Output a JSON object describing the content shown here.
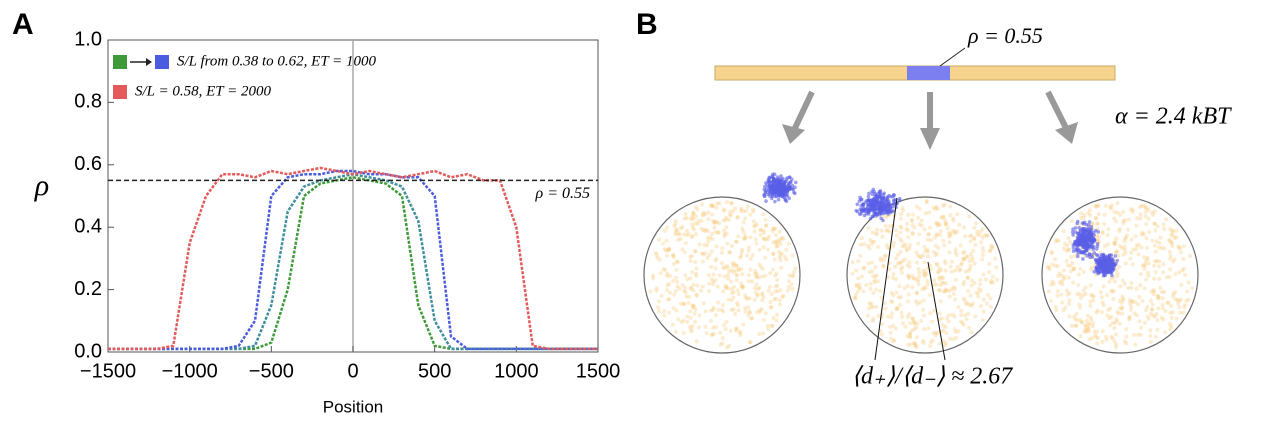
{
  "chart_data": {
    "type": "line",
    "panel_label": "A",
    "xlabel": "Position",
    "ylabel": "ρ",
    "x": [
      -1500,
      -1400,
      -1300,
      -1200,
      -1100,
      -1000,
      -900,
      -800,
      -700,
      -600,
      -500,
      -400,
      -300,
      -200,
      -100,
      0,
      100,
      200,
      300,
      400,
      500,
      600,
      700,
      800,
      900,
      1000,
      1100,
      1200,
      1300,
      1400,
      1500
    ],
    "series": [
      {
        "name": "S/L from 0.38 to 0.62,  ET = 1000",
        "color": "#3f9a3a",
        "values": [
          0.01,
          0.01,
          0.01,
          0.01,
          0.01,
          0.01,
          0.01,
          0.01,
          0.01,
          0.01,
          0.03,
          0.2,
          0.5,
          0.54,
          0.55,
          0.56,
          0.55,
          0.54,
          0.5,
          0.15,
          0.02,
          0.01,
          0.01,
          0.01,
          0.01,
          0.01,
          0.01,
          0.01,
          0.01,
          0.01,
          0.01
        ]
      },
      {
        "color": "#3f8f9a",
        "values": [
          0.01,
          0.01,
          0.01,
          0.01,
          0.01,
          0.01,
          0.01,
          0.01,
          0.01,
          0.02,
          0.15,
          0.45,
          0.53,
          0.55,
          0.56,
          0.57,
          0.56,
          0.55,
          0.53,
          0.42,
          0.1,
          0.01,
          0.01,
          0.01,
          0.01,
          0.01,
          0.01,
          0.01,
          0.01,
          0.01,
          0.01
        ]
      },
      {
        "color": "#4b5ce0",
        "values": [
          0.01,
          0.01,
          0.01,
          0.01,
          0.01,
          0.01,
          0.01,
          0.01,
          0.02,
          0.1,
          0.5,
          0.56,
          0.57,
          0.57,
          0.58,
          0.58,
          0.57,
          0.57,
          0.56,
          0.56,
          0.5,
          0.05,
          0.01,
          0.01,
          0.01,
          0.01,
          0.01,
          0.01,
          0.01,
          0.01,
          0.01
        ]
      },
      {
        "name": "S/L = 0.58,  ET = 2000",
        "color": "#e45a5a",
        "values": [
          0.01,
          0.01,
          0.01,
          0.01,
          0.02,
          0.35,
          0.5,
          0.57,
          0.57,
          0.56,
          0.58,
          0.57,
          0.58,
          0.59,
          0.58,
          0.57,
          0.58,
          0.57,
          0.56,
          0.57,
          0.58,
          0.56,
          0.57,
          0.55,
          0.55,
          0.4,
          0.02,
          0.01,
          0.01,
          0.01,
          0.01
        ]
      }
    ],
    "annotations": [
      {
        "text": "ρ = 0.55",
        "value": 0.55
      }
    ],
    "xlim": [
      -1500,
      1500
    ],
    "xticks": [
      {
        "value": -1500,
        "label": "−1500"
      },
      {
        "value": -1000,
        "label": "−1000"
      },
      {
        "value": -500,
        "label": "−500"
      },
      0,
      500,
      1000,
      1500
    ],
    "ylim": [
      0,
      1
    ],
    "yticks": [
      {
        "value": 0,
        "label": "0.0"
      },
      {
        "value": 0.2,
        "label": "0.2"
      },
      {
        "value": 0.4,
        "label": "0.4"
      },
      {
        "value": 0.6,
        "label": "0.6"
      },
      {
        "value": 0.8,
        "label": "0.8"
      },
      {
        "value": 1,
        "label": "1.0"
      }
    ]
  },
  "panel_b": {
    "panel_label": "B",
    "bar_label": "ρ = 0.55",
    "alpha_label": "α = 2.4 kBT",
    "ratio_label": "⟨d₊⟩/⟨d₋⟩ ≈ 2.67"
  }
}
